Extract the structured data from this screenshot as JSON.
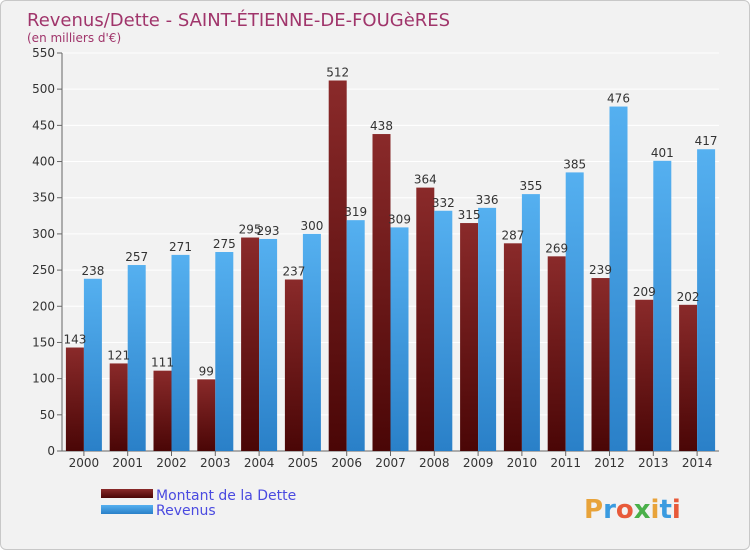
{
  "chart_data": {
    "type": "bar",
    "title": "Revenus/Dette - SAINT-ÉTIENNE-DE-FOUGèRES",
    "subtitle": "(en milliers d'€)",
    "categories": [
      "2000",
      "2001",
      "2002",
      "2003",
      "2004",
      "2005",
      "2006",
      "2007",
      "2008",
      "2009",
      "2010",
      "2011",
      "2012",
      "2013",
      "2014"
    ],
    "series": [
      {
        "name": "Montant de la Dette",
        "color": "#7a1a1a",
        "values": [
          143,
          121,
          111,
          99,
          295,
          237,
          512,
          438,
          364,
          315,
          287,
          269,
          239,
          209,
          202
        ]
      },
      {
        "name": "Revenus",
        "color": "#3a9be0",
        "values": [
          238,
          257,
          271,
          275,
          293,
          300,
          319,
          309,
          332,
          336,
          355,
          385,
          476,
          401,
          417
        ]
      }
    ],
    "ylim": [
      0,
      550
    ],
    "yticks": [
      0,
      50,
      100,
      150,
      200,
      250,
      300,
      350,
      400,
      450,
      500,
      550
    ],
    "grid": true,
    "legend_position": "bottom-left"
  },
  "logo": {
    "text": "Proxiti",
    "letters": [
      "P",
      "r",
      "o",
      "x",
      "i",
      "t",
      "i"
    ],
    "colors": [
      "#e8a33a",
      "#3a9be0",
      "#e85a3a",
      "#4ab04a",
      "#e8a33a",
      "#3a9be0",
      "#e85a3a"
    ]
  }
}
